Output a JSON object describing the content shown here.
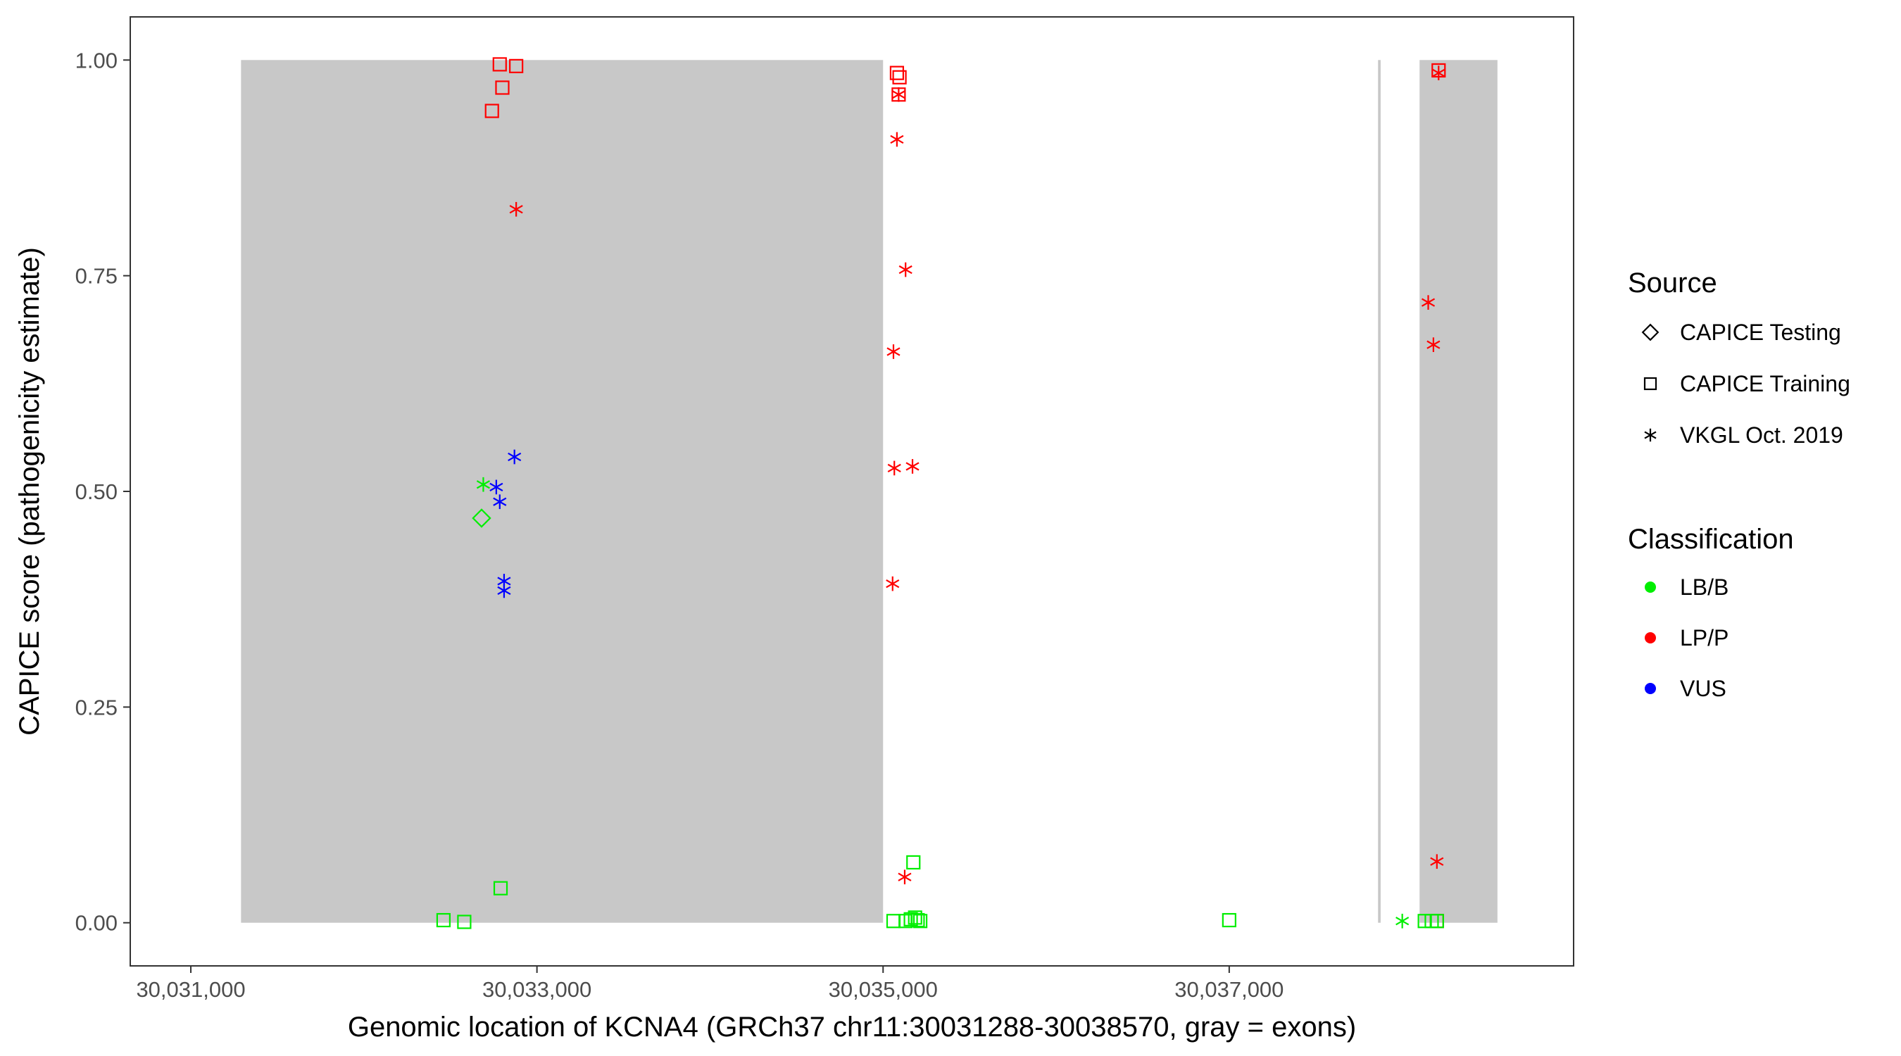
{
  "chart_data": {
    "type": "scatter",
    "title": "",
    "xlabel": "Genomic location of KCNA4 (GRCh37 chr11:30031288-30038570, gray = exons)",
    "ylabel": "CAPICE score (pathogenicity estimate)",
    "xlim": [
      30030650,
      30038990
    ],
    "ylim": [
      -0.05,
      1.05
    ],
    "x_ticks": [
      30031000,
      30033000,
      30035000,
      30037000
    ],
    "x_tick_labels": [
      "30,031,000",
      "30,033,000",
      "30,035,000",
      "30,037,000"
    ],
    "y_ticks": [
      0,
      0.25,
      0.5,
      0.75,
      1.0
    ],
    "y_tick_labels": [
      "0.00",
      "0.25",
      "0.50",
      "0.75",
      "1.00"
    ],
    "grid": false,
    "exons": [
      {
        "start": 30031290,
        "end": 30035000
      },
      {
        "start": 30037860,
        "end": 30037875
      },
      {
        "start": 30038100,
        "end": 30038550
      }
    ],
    "exon_color": "#c8c8c8",
    "legend_position": "right",
    "legend_source": {
      "title": "Source",
      "items": [
        {
          "label": "CAPICE Testing",
          "shape": "diamond"
        },
        {
          "label": "CAPICE Training",
          "shape": "square"
        },
        {
          "label": "VKGL Oct. 2019",
          "shape": "asterisk"
        }
      ]
    },
    "legend_classification": {
      "title": "Classification",
      "items": [
        {
          "label": "LB/B",
          "color": "#00ee00"
        },
        {
          "label": "LP/P",
          "color": "#ff0000"
        },
        {
          "label": "VUS",
          "color": "#0000ff"
        }
      ]
    },
    "series": [
      {
        "source": "CAPICE Training",
        "classification": "LP/P",
        "points": [
          [
            30032785,
            0.995
          ],
          [
            30032880,
            0.993
          ],
          [
            30032800,
            0.968
          ],
          [
            30032740,
            0.941
          ],
          [
            30035080,
            0.985
          ],
          [
            30035095,
            0.98
          ],
          [
            30035090,
            0.96
          ],
          [
            30038210,
            0.988
          ],
          [
            30038200,
            0.002
          ]
        ]
      },
      {
        "source": "VKGL Oct. 2019",
        "classification": "LP/P",
        "points": [
          [
            30032880,
            0.827
          ],
          [
            30035090,
            0.96
          ],
          [
            30035080,
            0.908
          ],
          [
            30035130,
            0.757
          ],
          [
            30035060,
            0.662
          ],
          [
            30035065,
            0.527
          ],
          [
            30035170,
            0.529
          ],
          [
            30035055,
            0.393
          ],
          [
            30035125,
            0.053
          ],
          [
            30038210,
            0.985
          ],
          [
            30038150,
            0.719
          ],
          [
            30038180,
            0.67
          ],
          [
            30038200,
            0.071
          ]
        ]
      },
      {
        "source": "VKGL Oct. 2019",
        "classification": "VUS",
        "points": [
          [
            30032870,
            0.54
          ],
          [
            30032765,
            0.505
          ],
          [
            30032785,
            0.488
          ],
          [
            30032810,
            0.396
          ],
          [
            30032810,
            0.385
          ]
        ]
      },
      {
        "source": "VKGL Oct. 2019",
        "classification": "LB/B",
        "points": [
          [
            30032690,
            0.508
          ],
          [
            30038000,
            0.002
          ]
        ]
      },
      {
        "source": "CAPICE Testing",
        "classification": "LB/B",
        "points": [
          [
            30032680,
            0.469
          ]
        ]
      },
      {
        "source": "CAPICE Training",
        "classification": "LB/B",
        "points": [
          [
            30032790,
            0.04
          ],
          [
            30032460,
            0.003
          ],
          [
            30032580,
            0.001
          ],
          [
            30035060,
            0.002
          ],
          [
            30035130,
            0.002
          ],
          [
            30035160,
            0.004
          ],
          [
            30035185,
            0.006
          ],
          [
            30035200,
            0.003
          ],
          [
            30035215,
            0.002
          ],
          [
            30035175,
            0.07
          ],
          [
            30037000,
            0.003
          ],
          [
            30038130,
            0.002
          ],
          [
            30038170,
            0.002
          ],
          [
            30038200,
            0.002
          ]
        ]
      }
    ]
  }
}
